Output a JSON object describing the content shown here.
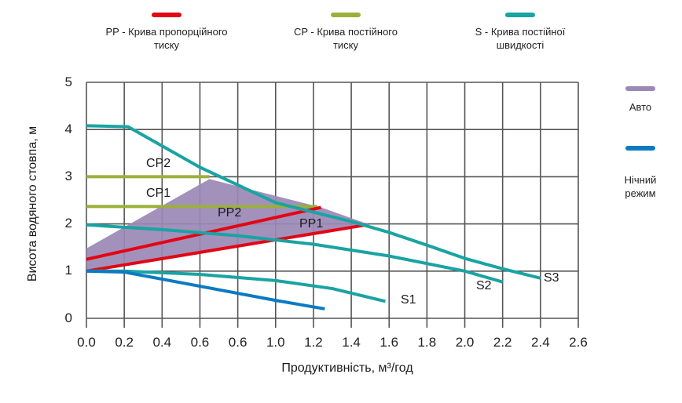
{
  "legend": {
    "top": [
      {
        "id": "pp",
        "label": "PP -  Крива пропорційного\nтиску",
        "color": "#e30613"
      },
      {
        "id": "cp",
        "label": "CP - Крива постійного\nтиску",
        "color": "#9bb03a"
      },
      {
        "id": "s",
        "label": "S - Крива постійної\nшвидкості",
        "color": "#1aa3a3"
      }
    ],
    "right": [
      {
        "id": "auto",
        "label": "Авто",
        "color": "#9a88b5"
      },
      {
        "id": "night",
        "label": "Нічний\nрежим",
        "color": "#0a7bc2"
      }
    ]
  },
  "axes": {
    "ylabel": "Висота водяного стовпа, м",
    "xlabel": "Продуктивність, м³/год",
    "y_ticks": [
      "0",
      "1",
      "2",
      "3",
      "4",
      "5"
    ],
    "x_ticks": [
      "0.0",
      "0.2",
      "0.4",
      "0.6",
      "0.6",
      "1.0",
      "1.2",
      "1.4",
      "1.6",
      "1.8",
      "2.0",
      "2.2",
      "2.4",
      "2.6"
    ]
  },
  "curve_labels": {
    "cp2": "CP2",
    "cp1": "CP1",
    "pp2": "PP2",
    "pp1": "PP1",
    "s1": "S1",
    "s2": "S2",
    "s3": "S3"
  },
  "chart_data": {
    "type": "line",
    "title": "",
    "xlabel": "Продуктивність, м³/год",
    "ylabel": "Висота водяного стовпа, м",
    "xlim": [
      0,
      2.6
    ],
    "ylim": [
      0,
      5
    ],
    "x_tick_labels": [
      "0.0",
      "0.2",
      "0.4",
      "0.6",
      "0.6",
      "1.0",
      "1.2",
      "1.4",
      "1.6",
      "1.8",
      "2.0",
      "2.2",
      "2.4",
      "2.6"
    ],
    "y_tick_labels": [
      "0",
      "1",
      "2",
      "3",
      "4",
      "5"
    ],
    "grid": true,
    "legend_position": "top and right",
    "series": [
      {
        "name": "S3",
        "type": "S - Крива постійної швидкості",
        "color": "#1aa3a3",
        "points": [
          [
            0,
            4.08
          ],
          [
            0.22,
            4.06
          ],
          [
            0.6,
            3.2
          ],
          [
            1.0,
            2.45
          ],
          [
            1.4,
            2.05
          ],
          [
            1.6,
            1.82
          ],
          [
            1.8,
            1.55
          ],
          [
            2.0,
            1.27
          ],
          [
            2.2,
            1.05
          ],
          [
            2.4,
            0.85
          ]
        ]
      },
      {
        "name": "S2",
        "type": "S - Крива постійної швидкості",
        "color": "#1aa3a3",
        "points": [
          [
            0,
            1.98
          ],
          [
            0.4,
            1.88
          ],
          [
            0.8,
            1.75
          ],
          [
            1.2,
            1.57
          ],
          [
            1.6,
            1.32
          ],
          [
            2.0,
            1.0
          ],
          [
            2.2,
            0.77
          ]
        ]
      },
      {
        "name": "S1",
        "type": "S - Крива постійної швидкості",
        "color": "#1aa3a3",
        "points": [
          [
            0,
            1.0
          ],
          [
            0.2,
            1.0
          ],
          [
            0.6,
            0.93
          ],
          [
            1.0,
            0.8
          ],
          [
            1.3,
            0.63
          ],
          [
            1.58,
            0.36
          ]
        ]
      },
      {
        "name": "CP2",
        "type": "CP - Крива постійного тиску",
        "color": "#9bb03a",
        "points": [
          [
            0,
            3.0
          ],
          [
            0.65,
            3.0
          ]
        ]
      },
      {
        "name": "CP1",
        "type": "CP - Крива постійного тиску",
        "color": "#9bb03a",
        "points": [
          [
            0,
            2.37
          ],
          [
            1.22,
            2.37
          ]
        ]
      },
      {
        "name": "PP2",
        "type": "PP - Крива пропорційного тиску",
        "color": "#e30613",
        "points": [
          [
            0,
            1.25
          ],
          [
            1.24,
            2.35
          ]
        ]
      },
      {
        "name": "PP1",
        "type": "PP - Крива пропорційного тиску",
        "color": "#e30613",
        "points": [
          [
            0,
            1.0
          ],
          [
            1.48,
            1.98
          ]
        ]
      },
      {
        "name": "Нічний режим",
        "color": "#0a7bc2",
        "points": [
          [
            0,
            1.0
          ],
          [
            0.2,
            0.98
          ],
          [
            0.6,
            0.68
          ],
          [
            1.0,
            0.38
          ],
          [
            1.26,
            0.2
          ]
        ]
      },
      {
        "name": "Авто",
        "type": "area",
        "color": "#9a88b5",
        "polygon": [
          [
            0,
            1.0
          ],
          [
            0,
            1.48
          ],
          [
            0.65,
            2.95
          ],
          [
            1.24,
            2.35
          ],
          [
            1.5,
            1.98
          ],
          [
            1.48,
            1.98
          ],
          [
            0,
            1.0
          ]
        ]
      }
    ]
  }
}
